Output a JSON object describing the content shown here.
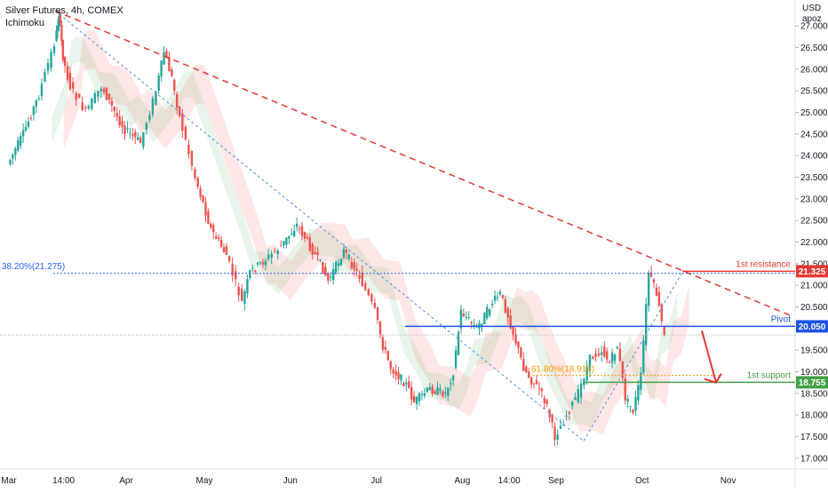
{
  "header": {
    "title": "Silver Futures, 4h, COMEX",
    "indicator": "Ichimoku"
  },
  "chart_data": {
    "type": "candlestick",
    "currency": "USD",
    "unit": "apoz",
    "y_ticks": [
      "27.000",
      "26.500",
      "26.000",
      "25.500",
      "25.000",
      "24.500",
      "24.000",
      "23.500",
      "23.000",
      "22.500",
      "22.000",
      "21.500",
      "21.000",
      "20.500",
      "20.000",
      "19.500",
      "19.000",
      "18.500",
      "18.000",
      "17.500",
      "17.000"
    ],
    "ylim": [
      16.75,
      27.6
    ],
    "x_ticks": [
      {
        "label": "Mar",
        "pos": 0.0
      },
      {
        "label": "14:00",
        "pos": 0.07
      },
      {
        "label": "Apr",
        "pos": 0.15
      },
      {
        "label": "May",
        "pos": 0.25
      },
      {
        "label": "Jun",
        "pos": 0.36
      },
      {
        "label": "Jul",
        "pos": 0.47
      },
      {
        "label": "Aug",
        "pos": 0.58
      },
      {
        "label": "14:00",
        "pos": 0.64
      },
      {
        "label": "Sep",
        "pos": 0.7
      },
      {
        "label": "Oct",
        "pos": 0.81
      },
      {
        "label": "Nov",
        "pos": 0.92
      }
    ],
    "price_path": [
      [
        0.0,
        23.8
      ],
      [
        0.02,
        24.5
      ],
      [
        0.04,
        25.4
      ],
      [
        0.06,
        26.6
      ],
      [
        0.065,
        27.3
      ],
      [
        0.07,
        26.3
      ],
      [
        0.08,
        25.6
      ],
      [
        0.1,
        25.0
      ],
      [
        0.12,
        25.6
      ],
      [
        0.14,
        24.9
      ],
      [
        0.15,
        24.6
      ],
      [
        0.17,
        24.3
      ],
      [
        0.19,
        25.5
      ],
      [
        0.2,
        26.4
      ],
      [
        0.21,
        25.8
      ],
      [
        0.22,
        24.9
      ],
      [
        0.24,
        23.5
      ],
      [
        0.26,
        22.3
      ],
      [
        0.28,
        21.7
      ],
      [
        0.3,
        20.6
      ],
      [
        0.31,
        21.3
      ],
      [
        0.33,
        21.6
      ],
      [
        0.35,
        21.9
      ],
      [
        0.37,
        22.4
      ],
      [
        0.38,
        22.1
      ],
      [
        0.4,
        21.5
      ],
      [
        0.41,
        21.1
      ],
      [
        0.43,
        21.8
      ],
      [
        0.45,
        21.2
      ],
      [
        0.47,
        20.4
      ],
      [
        0.48,
        19.6
      ],
      [
        0.49,
        19.1
      ],
      [
        0.51,
        18.7
      ],
      [
        0.52,
        18.3
      ],
      [
        0.54,
        18.6
      ],
      [
        0.56,
        18.5
      ],
      [
        0.57,
        19.0
      ],
      [
        0.58,
        20.4
      ],
      [
        0.6,
        20.0
      ],
      [
        0.62,
        20.6
      ],
      [
        0.63,
        20.8
      ],
      [
        0.64,
        20.3
      ],
      [
        0.65,
        19.7
      ],
      [
        0.66,
        19.1
      ],
      [
        0.67,
        18.8
      ],
      [
        0.68,
        18.6
      ],
      [
        0.69,
        18.2
      ],
      [
        0.7,
        17.5
      ],
      [
        0.715,
        18.0
      ],
      [
        0.73,
        18.5
      ],
      [
        0.745,
        19.3
      ],
      [
        0.76,
        19.5
      ],
      [
        0.77,
        19.2
      ],
      [
        0.78,
        19.6
      ],
      [
        0.79,
        18.4
      ],
      [
        0.8,
        18.1
      ],
      [
        0.81,
        18.9
      ],
      [
        0.82,
        21.3
      ],
      [
        0.83,
        20.8
      ],
      [
        0.84,
        19.8
      ]
    ],
    "fib_382": {
      "label": "38.20%(21.275)",
      "value": 21.275
    },
    "fib_618": {
      "label": "61.80%(18.915)",
      "value": 18.915
    },
    "levels": [
      {
        "name": "1st resistance",
        "value": 21.325,
        "price_label": "21.325",
        "color": "#e53935"
      },
      {
        "name": "Pivot",
        "value": 20.05,
        "price_label": "20.050",
        "color": "#1e53e5"
      },
      {
        "name": "1st support",
        "value": 18.755,
        "price_label": "18.755",
        "color": "#43a047"
      }
    ],
    "last_price": 19.85
  }
}
